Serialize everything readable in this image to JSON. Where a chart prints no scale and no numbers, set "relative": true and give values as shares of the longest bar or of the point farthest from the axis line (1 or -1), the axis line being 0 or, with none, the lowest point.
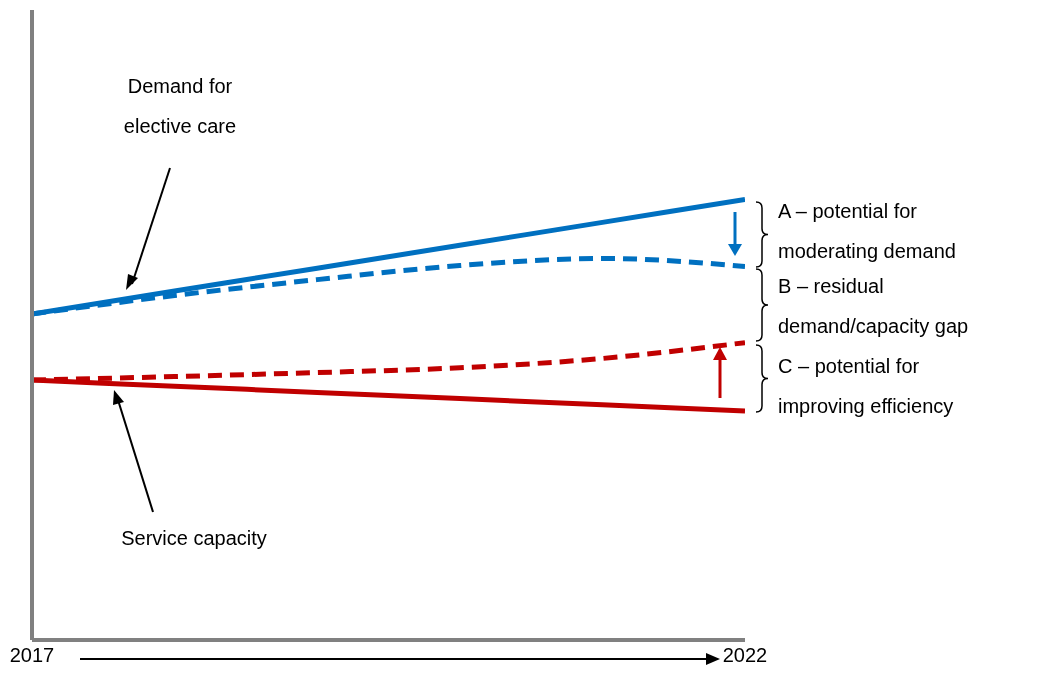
{
  "chart_data": {
    "type": "line",
    "relative": true,
    "x": [
      2017,
      2018,
      2019,
      2020,
      2021,
      2022
    ],
    "xlim": [
      2017,
      2022
    ],
    "xticks": [
      2017,
      2022
    ],
    "tick_labels": "x",
    "marker": "none",
    "series": [
      {
        "color": "#0070c0",
        "line_style": "solid",
        "values": [
          0.74,
          0.792,
          0.844,
          0.896,
          0.948,
          1.0
        ]
      },
      {
        "color": "#0070c0",
        "line_style": "dashed",
        "values": [
          0.74,
          0.782,
          0.818,
          0.85,
          0.866,
          0.848
        ]
      },
      {
        "color": "#c00000",
        "line_style": "dashed",
        "values": [
          0.59,
          0.598,
          0.607,
          0.618,
          0.639,
          0.675
        ]
      },
      {
        "color": "#c00000",
        "line_style": "solid",
        "values": [
          0.59,
          0.576,
          0.562,
          0.548,
          0.534,
          0.52
        ]
      }
    ],
    "annotations": [
      "Demand for elective care",
      "Service capacity",
      "A – potential for moderating demand",
      "B – residual demand/capacity gap",
      "C – potential for improving efficiency"
    ]
  }
}
